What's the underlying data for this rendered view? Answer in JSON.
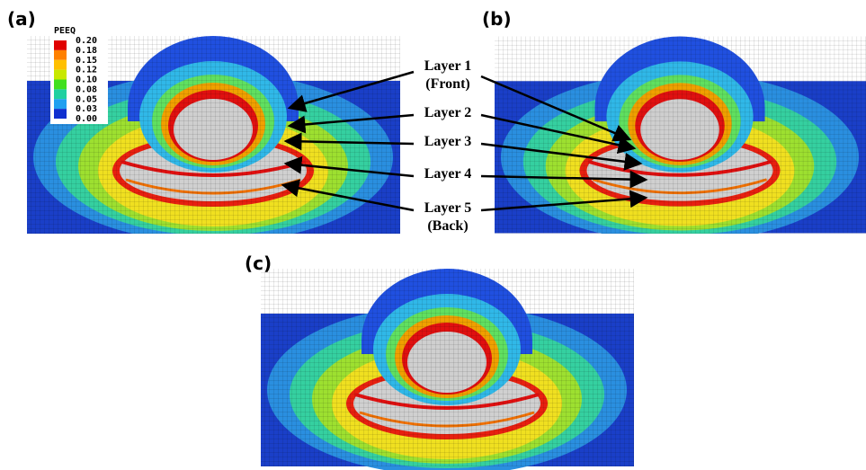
{
  "panels": [
    {
      "label": "(a)"
    },
    {
      "label": "(b)"
    },
    {
      "label": "(c)"
    }
  ],
  "legend": {
    "title": "PEEQ",
    "ticks": [
      "0.20",
      "0.18",
      "0.15",
      "0.12",
      "0.10",
      "0.08",
      "0.05",
      "0.03",
      "0.00"
    ]
  },
  "layers": [
    {
      "name": "Layer 1",
      "note": "(Front)"
    },
    {
      "name": "Layer 2"
    },
    {
      "name": "Layer 3"
    },
    {
      "name": "Layer 4"
    },
    {
      "name": "Layer 5",
      "note": "(Back)"
    }
  ]
}
